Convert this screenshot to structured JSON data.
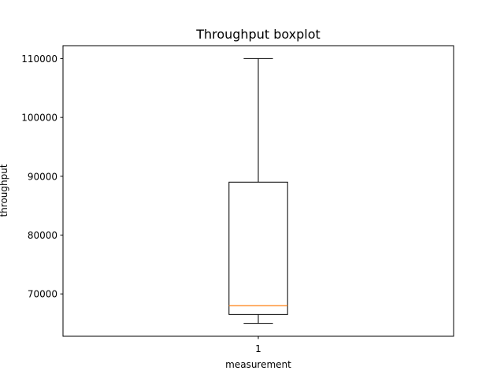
{
  "chart_data": {
    "type": "boxplot",
    "title": "Throughput boxplot",
    "xlabel": "measurement",
    "ylabel": "throughput",
    "categories": [
      "1"
    ],
    "boxes": [
      {
        "category": "1",
        "whisker_low": 65000,
        "q1": 66500,
        "median": 68000,
        "q3": 89000,
        "whisker_high": 110000
      }
    ],
    "ylim": [
      62800,
      112200
    ],
    "yticks": [
      70000,
      80000,
      90000,
      100000,
      110000
    ],
    "ytick_labels": [
      "70000",
      "80000",
      "90000",
      "100000",
      "110000"
    ],
    "grid": false,
    "colors": {
      "box": "#000000",
      "median": "#ff7f0e"
    }
  }
}
